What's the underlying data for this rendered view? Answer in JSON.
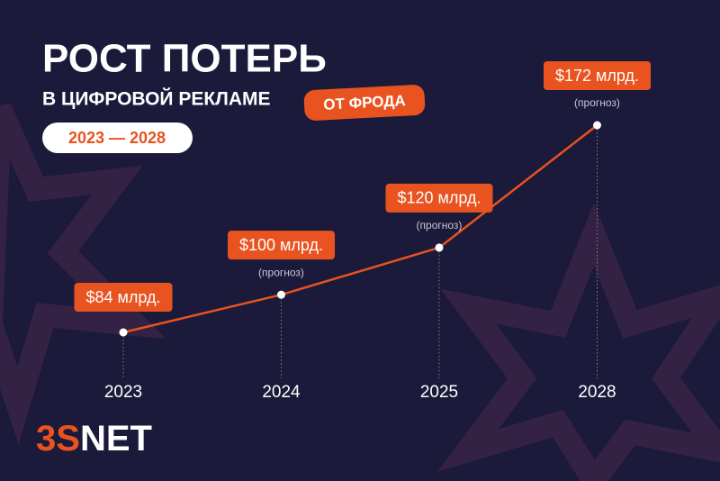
{
  "title": "РОСТ ПОТЕРЬ",
  "subtitle": "В ЦИФРОВОЙ РЕКЛАМЕ",
  "badge": "ОТ ФРОДА",
  "period": "2023 — 2028",
  "logo": {
    "accent": "3S",
    "rest": "NET"
  },
  "chart_data": {
    "type": "line",
    "categories": [
      "2023",
      "2024",
      "2025",
      "2028"
    ],
    "values": [
      84,
      100,
      120,
      172
    ],
    "value_labels": [
      "$84 млрд.",
      "$100 млрд.",
      "$120 млрд.",
      "$172 млрд."
    ],
    "notes": [
      null,
      "(прогноз)",
      "(прогноз)",
      "(прогноз)"
    ],
    "color": "#e8531f"
  }
}
